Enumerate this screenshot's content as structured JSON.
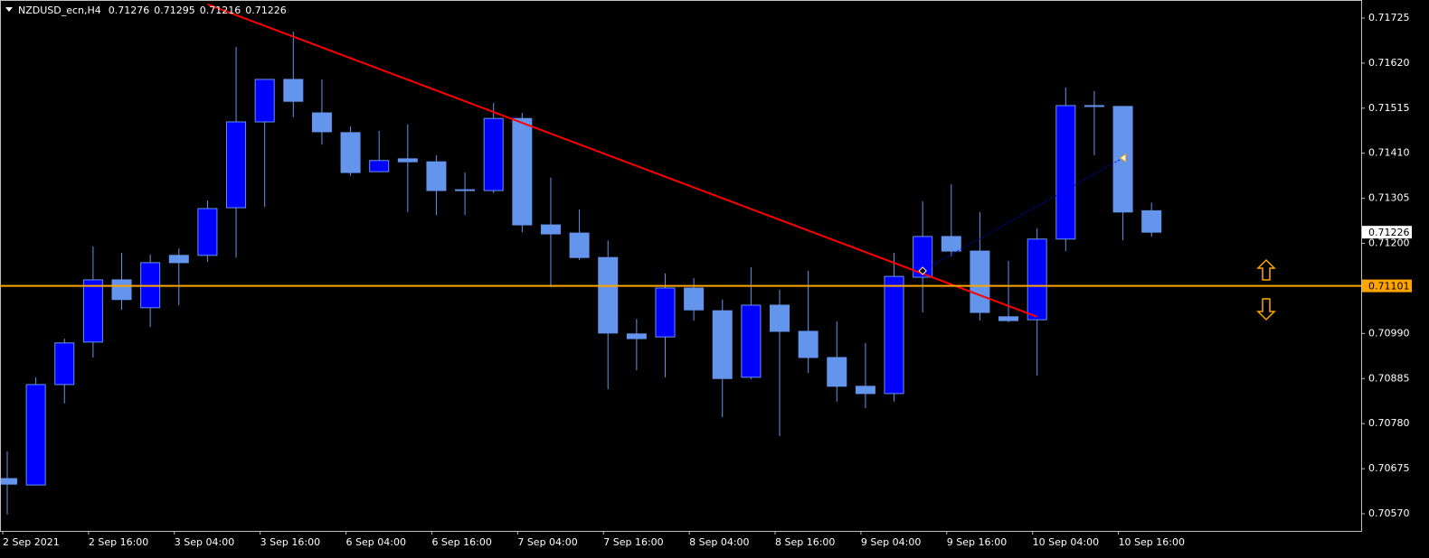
{
  "chart_data": {
    "type": "candlestick",
    "title": "NZDUSD_ecn,H4",
    "categories": [
      "2 Sep 2021",
      null,
      null,
      "2 Sep 16:00",
      null,
      null,
      "3 Sep 04:00",
      null,
      null,
      "3 Sep 16:00",
      null,
      null,
      "6 Sep 04:00",
      null,
      null,
      "6 Sep 16:00",
      null,
      null,
      "7 Sep 04:00",
      null,
      null,
      "7 Sep 16:00",
      null,
      null,
      "8 Sep 04:00",
      null,
      null,
      "8 Sep 16:00",
      null,
      null,
      "9 Sep 04:00",
      null,
      null,
      "9 Sep 16:00",
      null,
      null,
      "10 Sep 04:00",
      null,
      null,
      "10 Sep 16:00",
      null
    ],
    "open": [
      0.70652,
      0.70637,
      0.70871,
      0.7097,
      0.71115,
      0.7105,
      0.71172,
      0.71172,
      0.71283,
      0.71483,
      0.71582,
      0.71504,
      0.71458,
      0.71367,
      0.71397,
      0.7139,
      0.71325,
      0.71323,
      0.71491,
      0.71243,
      0.71224,
      0.71167,
      0.70989,
      0.70982,
      0.71096,
      0.71043,
      0.70888,
      0.71056,
      0.70995,
      0.70934,
      0.70867,
      0.7085,
      0.71121,
      0.71216,
      0.71182,
      0.71029,
      0.71022,
      0.7121,
      0.71521,
      0.71519,
      0.71276
    ],
    "high": [
      0.70715,
      0.70888,
      0.70978,
      0.71193,
      0.71178,
      0.71174,
      0.71188,
      0.713,
      0.71658,
      0.71582,
      0.71693,
      0.71582,
      0.71473,
      0.71462,
      0.71477,
      0.71405,
      0.71365,
      0.71527,
      0.71504,
      0.71353,
      0.71279,
      0.71207,
      0.71024,
      0.7113,
      0.71119,
      0.71069,
      0.71144,
      0.71092,
      0.71136,
      0.71018,
      0.70968,
      0.71178,
      0.71298,
      0.71338,
      0.71273,
      0.71159,
      0.71235,
      0.71563,
      0.71555,
      0.71519,
      0.71295
    ],
    "low": [
      0.70568,
      0.70637,
      0.70827,
      0.70934,
      0.71045,
      0.71005,
      0.71056,
      0.71157,
      0.71167,
      0.71285,
      0.71494,
      0.7143,
      0.71357,
      0.71367,
      0.71273,
      0.71266,
      0.71266,
      0.71317,
      0.71226,
      0.71098,
      0.71161,
      0.7086,
      0.70904,
      0.70888,
      0.7102,
      0.70795,
      0.70883,
      0.70751,
      0.70898,
      0.70831,
      0.70816,
      0.70831,
      0.71039,
      0.7117,
      0.7102,
      0.71016,
      0.70892,
      0.71182,
      0.71405,
      0.71207,
      0.71216
    ],
    "close": [
      0.70639,
      0.70871,
      0.70968,
      0.71115,
      0.71069,
      0.71155,
      0.71155,
      0.71281,
      0.71483,
      0.71582,
      0.71531,
      0.7146,
      0.71365,
      0.71393,
      0.7139,
      0.71323,
      0.71323,
      0.71491,
      0.71243,
      0.71222,
      0.71167,
      0.70991,
      0.70978,
      0.71096,
      0.71045,
      0.70885,
      0.71056,
      0.70995,
      0.70934,
      0.70867,
      0.7085,
      0.71123,
      0.71216,
      0.71182,
      0.71039,
      0.7102,
      0.7121,
      0.71521,
      0.71519,
      0.71273,
      0.71226
    ],
    "up_color": "#0000ff",
    "down_color": "#6495ed",
    "wick_color": "#6495ed",
    "ylim": [
      0.7053,
      0.71767
    ],
    "yticks": [
      0.71725,
      {
        "value": 0.7162,
        "label": "0.71620"
      },
      0.71515,
      {
        "value": 0.7141,
        "label": "0.71410"
      },
      0.71305,
      {
        "value": 0.712,
        "label": "0.71200"
      },
      {
        "value": 0.7099,
        "label": "0.70990"
      },
      0.70885,
      {
        "value": 0.7078,
        "label": "0.70780"
      },
      0.70675,
      {
        "value": 0.7057,
        "label": "0.70570"
      }
    ],
    "horizontal_line": {
      "value": 0.71101,
      "color": "#ffa500"
    },
    "trendlines": [
      {
        "start": {
          "index": 7,
          "price": 0.71757
        },
        "end": {
          "index": 36,
          "price": 0.71029
        },
        "color": "#ff0000",
        "dashed": false
      },
      {
        "start": {
          "index": 32,
          "price": 0.71136
        },
        "end": {
          "index": 39,
          "price": 0.71399
        },
        "color": "#0000cd",
        "dashed": true
      }
    ]
  }
}
